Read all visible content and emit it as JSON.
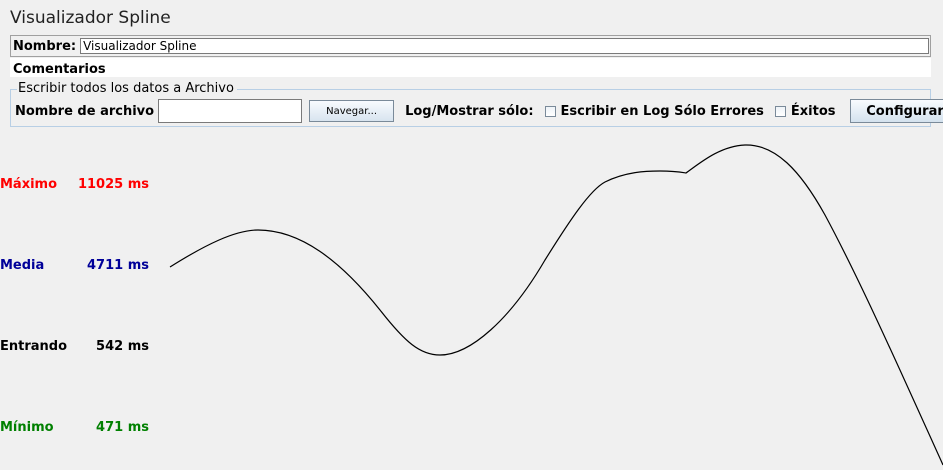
{
  "title": "Visualizador Spline",
  "name": {
    "label": "Nombre:",
    "value": "Visualizador Spline"
  },
  "comments": {
    "label": "Comentarios"
  },
  "file_section": {
    "legend": "Escribir todos los datos a Archivo",
    "filename_label": "Nombre de archivo",
    "filename_value": "",
    "browse_label": "Navegar...",
    "log_show_label": "Log/Mostrar sólo:",
    "errors_only_label": "Escribir en Log Sólo Errores",
    "errors_only_checked": false,
    "successes_label": "Éxitos",
    "successes_checked": false,
    "configure_label": "Configurar"
  },
  "stats": {
    "maximum": {
      "label": "Máximo",
      "value": "11025 ms",
      "color": "#ff0000"
    },
    "average": {
      "label": "Media",
      "value": "4711 ms",
      "color": "#000099"
    },
    "incoming": {
      "label": "Entrando",
      "value": "542 ms",
      "color": "#000000"
    },
    "minimum": {
      "label": "Mínimo",
      "value": "471 ms",
      "color": "#008000"
    }
  }
}
